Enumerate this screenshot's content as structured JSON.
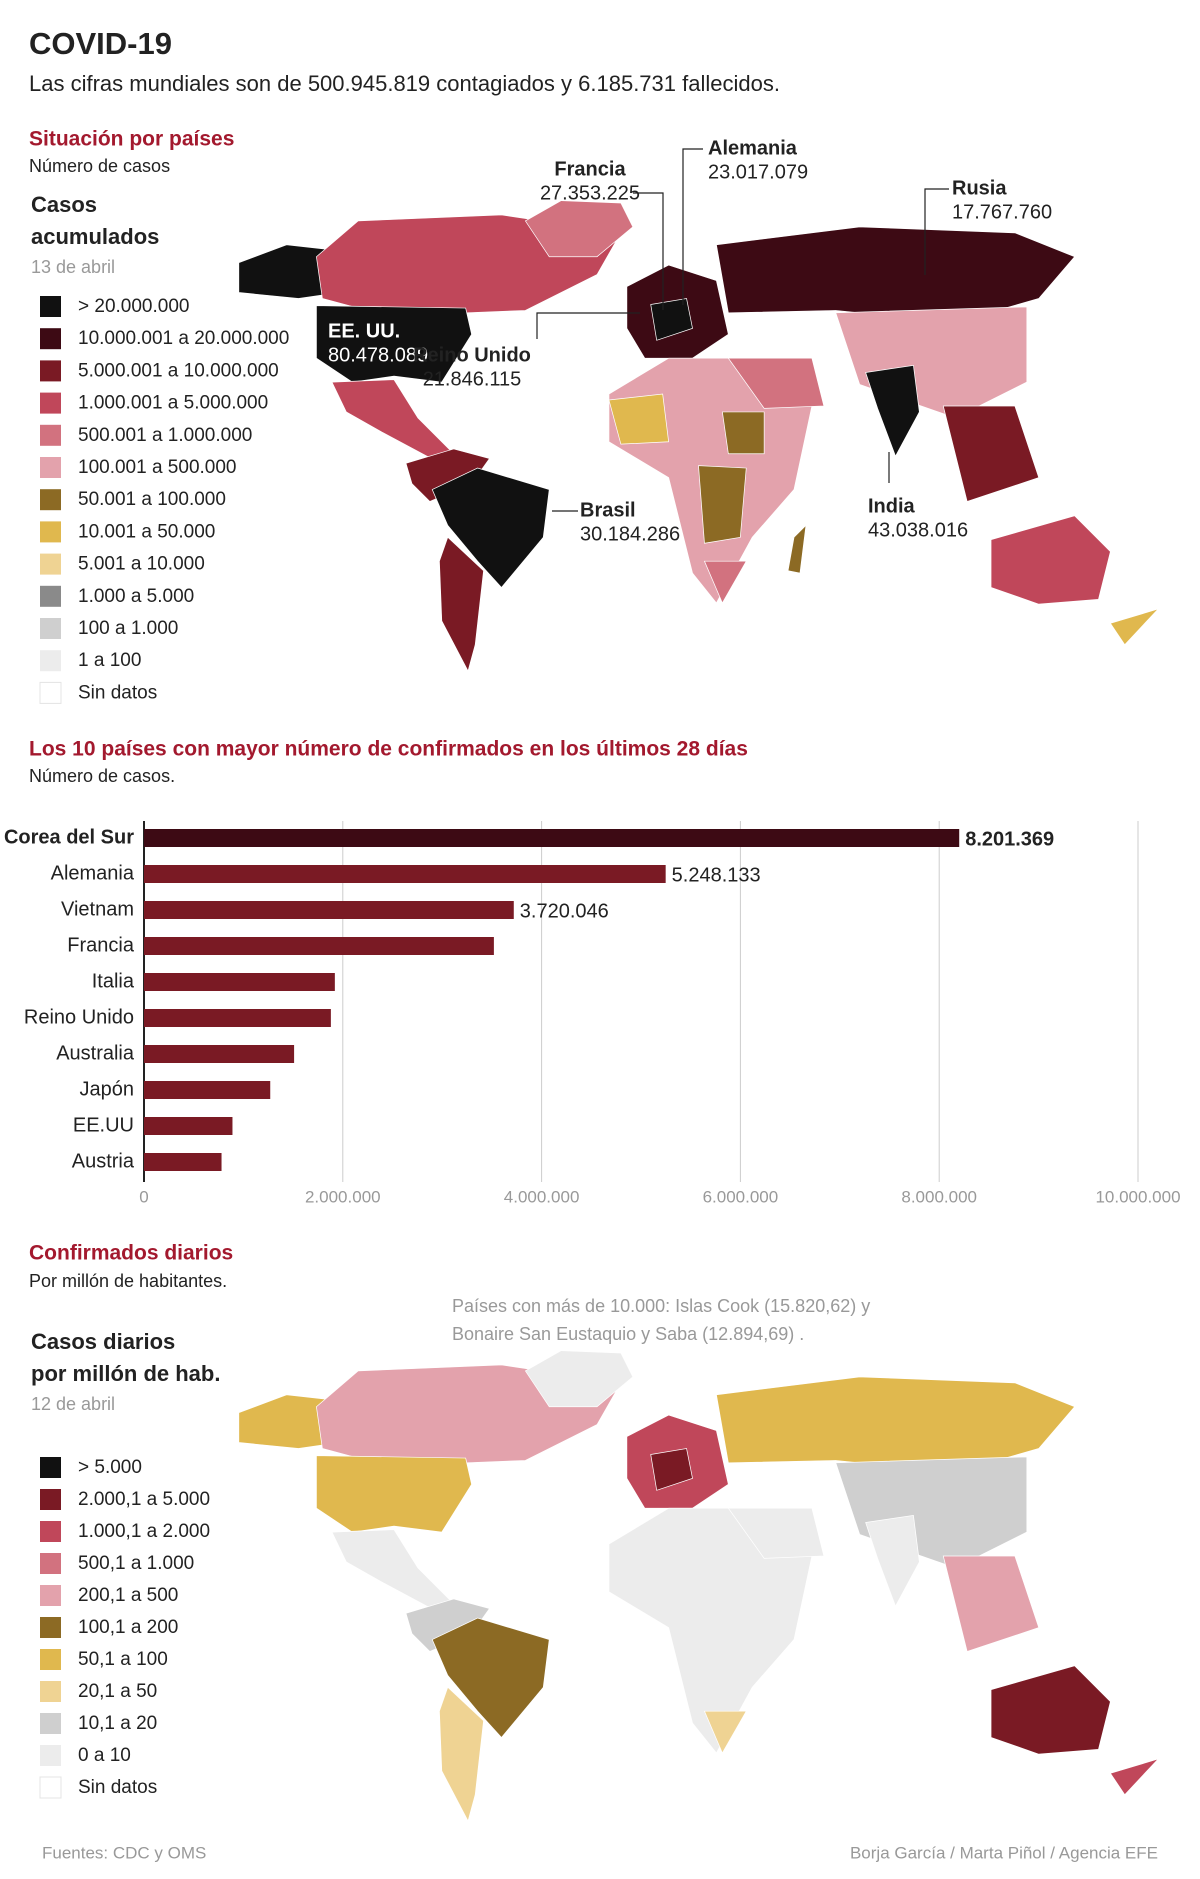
{
  "header": {
    "title": "COVID-19",
    "subtitle": "Las cifras mundiales son de 500.945.819 contagiados y 6.185.731 fallecidos."
  },
  "map1": {
    "title": "Situación por países",
    "subtitle": "Número de casos",
    "legend_title": [
      "Casos",
      "acumulados"
    ],
    "date": "13 de abril",
    "legend": [
      {
        "label": "> 20.000.000",
        "color": "#111111"
      },
      {
        "label": "10.000.001 a 20.000.000",
        "color": "#3d0a14"
      },
      {
        "label": "5.000.001 a 10.000.000",
        "color": "#7a1a24"
      },
      {
        "label": "1.000.001 a 5.000.000",
        "color": "#c0475a"
      },
      {
        "label": "500.001 a 1.000.000",
        "color": "#d2727f"
      },
      {
        "label": "100.001 a 500.000",
        "color": "#e3a2ac"
      },
      {
        "label": "50.001 a 100.000",
        "color": "#8c6a24"
      },
      {
        "label": "10.001 a 50.000",
        "color": "#e0b84e"
      },
      {
        "label": "5.001 a 10.000",
        "color": "#efd393"
      },
      {
        "label": "1.000 a 5.000",
        "color": "#8a8a8a"
      },
      {
        "label": "100 a 1.000",
        "color": "#cfcfcf"
      },
      {
        "label": "1 a 100",
        "color": "#ececec"
      },
      {
        "label": "Sin datos",
        "color": "#ffffff"
      }
    ],
    "annotations": [
      {
        "name": "Francia",
        "value": "27.353.225"
      },
      {
        "name": "Alemania",
        "value": "23.017.079"
      },
      {
        "name": "Rusia",
        "value": "17.767.760"
      },
      {
        "name": "EE. UU.",
        "value": "80.478.089"
      },
      {
        "name": "Reino Unido",
        "value": "21.846.115"
      },
      {
        "name": "Brasil",
        "value": "30.184.286"
      },
      {
        "name": "India",
        "value": "43.038.016"
      }
    ]
  },
  "chart_data": {
    "type": "hbar",
    "title": "Los 10 países con mayor número de confirmados en los últimos 28 días",
    "subtitle": "Número de casos.",
    "categories": [
      "Corea del Sur",
      "Alemania",
      "Vietnam",
      "Francia",
      "Italia",
      "Reino Unido",
      "Australia",
      "Japón",
      "EE.UU",
      "Austria"
    ],
    "values": [
      8201369,
      5248133,
      3720046,
      3520000,
      1920000,
      1880000,
      1510000,
      1270000,
      890000,
      780000
    ],
    "value_labels": [
      "8.201.369",
      "5.248.133",
      "3.720.046",
      null,
      null,
      null,
      null,
      null,
      null,
      null
    ],
    "colors": [
      "#3d0a14",
      "#7a1a24",
      "#7a1a24",
      "#7a1a24",
      "#7a1a24",
      "#7a1a24",
      "#7a1a24",
      "#7a1a24",
      "#7a1a24",
      "#7a1a24"
    ],
    "xlim": [
      0,
      10000000
    ],
    "xticks": [
      0,
      {
        "value": 2000000,
        "label": "2.000.000"
      },
      {
        "value": 4000000,
        "label": "4.000.000"
      },
      {
        "value": 6000000,
        "label": "6.000.000"
      },
      {
        "value": 8000000,
        "label": "8.000.000"
      },
      {
        "value": 10000000,
        "label": "10.000.000"
      }
    ],
    "grid": true
  },
  "map2": {
    "title": "Confirmados diarios",
    "subtitle": "Por millón de habitantes.",
    "note": [
      "Países con más de 10.000: Islas Cook (15.820,62) y",
      "Bonaire San Eustaquio y Saba (12.894,69) ."
    ],
    "legend_title": [
      "Casos diarios",
      "por millón de hab."
    ],
    "date": "12 de abril",
    "legend": [
      {
        "label": "> 5.000",
        "color": "#111111"
      },
      {
        "label": "2.000,1 a 5.000",
        "color": "#7a1a24"
      },
      {
        "label": "1.000,1 a 2.000",
        "color": "#c0475a"
      },
      {
        "label": "500,1 a 1.000",
        "color": "#d2727f"
      },
      {
        "label": "200,1 a 500",
        "color": "#e3a2ac"
      },
      {
        "label": "100,1 a 200",
        "color": "#8c6a24"
      },
      {
        "label": "50,1 a 100",
        "color": "#e0b84e"
      },
      {
        "label": "20,1 a 50",
        "color": "#efd393"
      },
      {
        "label": "10,1 a 20",
        "color": "#cfcfcf"
      },
      {
        "label": "0 a 10",
        "color": "#ececec"
      },
      {
        "label": "Sin datos",
        "color": "#ffffff"
      }
    ]
  },
  "footer": {
    "source": "Fuentes: CDC y OMS",
    "credit": "Borja García / Marta Piñol / Agencia EFE"
  }
}
